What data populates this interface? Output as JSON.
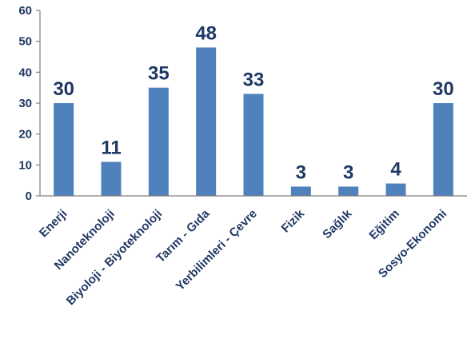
{
  "chart_data": {
    "type": "bar",
    "categories": [
      "Enerji",
      "Nanoteknoloji",
      "Biyoloji - Biyoteknoloji",
      "Tarım - Gıda",
      "Yerbilimleri - Çevre",
      "Fizik",
      "Sağlık",
      "Eğitim",
      "Sosyo-Ekonomi"
    ],
    "values": [
      30,
      11,
      35,
      48,
      33,
      3,
      3,
      4,
      30
    ],
    "data_labels": [
      "30",
      "11",
      "35",
      "48",
      "33",
      "3",
      "3",
      "4",
      "30"
    ],
    "yticks": [
      "0",
      "10",
      "20",
      "30",
      "40",
      "50",
      "60"
    ],
    "ylim": [
      0,
      60
    ],
    "grid": false,
    "legend": "none",
    "bar_color": "#4f81bd",
    "label_color": "#1f3864"
  }
}
